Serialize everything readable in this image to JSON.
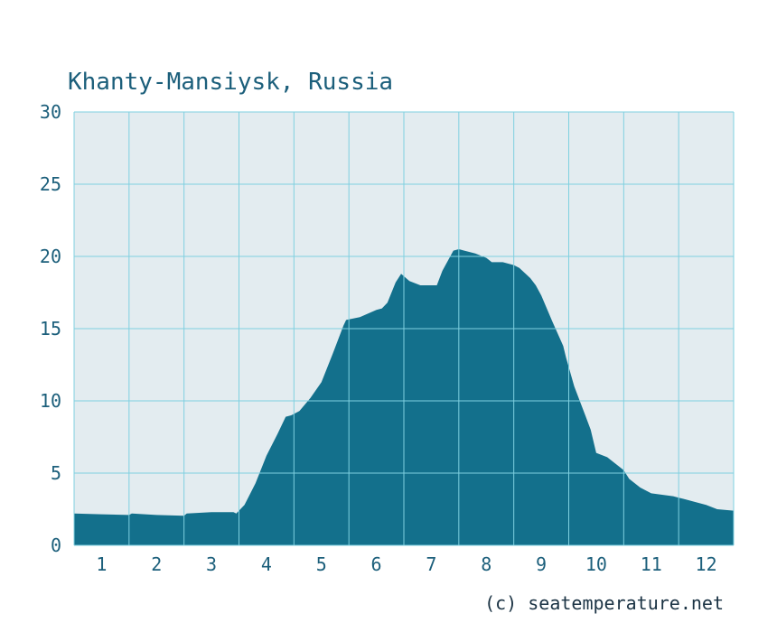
{
  "chart_data": {
    "type": "area",
    "title": "Khanty-Mansiysk, Russia",
    "xlabel": "",
    "ylabel": "",
    "credit": "(c) seatemperature.net",
    "x_ticks": [
      "1",
      "2",
      "3",
      "4",
      "5",
      "6",
      "7",
      "8",
      "9",
      "10",
      "11",
      "12"
    ],
    "y_ticks": [
      "0",
      "5",
      "10",
      "15",
      "20",
      "25",
      "30"
    ],
    "xlim": [
      0.5,
      12.5
    ],
    "ylim": [
      0,
      30
    ],
    "grid": true,
    "colors": {
      "plot_background": "#e3ecf0",
      "grid": "#7fd0e0",
      "fill": "#13708c",
      "title": "#1c5f7b",
      "ticks": "#1c5f7b"
    },
    "series": [
      {
        "x": [
          0.5,
          1.0,
          1.5,
          1.55,
          2.0,
          2.5,
          2.55,
          3.0,
          3.4,
          3.45,
          3.6,
          3.8,
          4.0,
          4.2,
          4.35,
          4.45,
          4.6,
          4.8,
          5.0,
          5.2,
          5.4,
          5.45,
          5.7,
          6.0,
          6.1,
          6.2,
          6.35,
          6.45,
          6.6,
          6.8,
          7.0,
          7.1,
          7.2,
          7.4,
          7.5,
          7.6,
          7.8,
          8.0,
          8.1,
          8.3,
          8.4,
          8.5,
          8.6,
          8.8,
          8.9,
          9.0,
          9.2,
          9.4,
          9.45,
          9.6,
          9.8,
          9.9,
          10.0,
          10.2,
          10.4,
          10.5,
          10.6,
          10.8,
          11.0,
          11.2,
          11.4,
          11.5,
          11.6,
          11.8,
          12.0,
          12.2,
          12.5
        ],
        "y": [
          2.2,
          2.15,
          2.1,
          2.2,
          2.1,
          2.05,
          2.2,
          2.3,
          2.3,
          2.2,
          2.8,
          4.3,
          6.2,
          7.7,
          8.9,
          9.0,
          9.3,
          10.2,
          11.3,
          13.2,
          15.2,
          15.6,
          15.8,
          16.3,
          16.4,
          16.8,
          18.2,
          18.8,
          18.3,
          18.0,
          18.0,
          18.0,
          19.0,
          20.4,
          20.5,
          20.4,
          20.2,
          19.9,
          19.6,
          19.6,
          19.5,
          19.4,
          19.2,
          18.5,
          18.0,
          17.3,
          15.5,
          13.8,
          13.0,
          11.0,
          9.0,
          8.0,
          6.4,
          6.1,
          5.5,
          5.2,
          4.6,
          4.0,
          3.6,
          3.5,
          3.4,
          3.3,
          3.2,
          3.0,
          2.8,
          2.5,
          2.4
        ]
      }
    ]
  }
}
